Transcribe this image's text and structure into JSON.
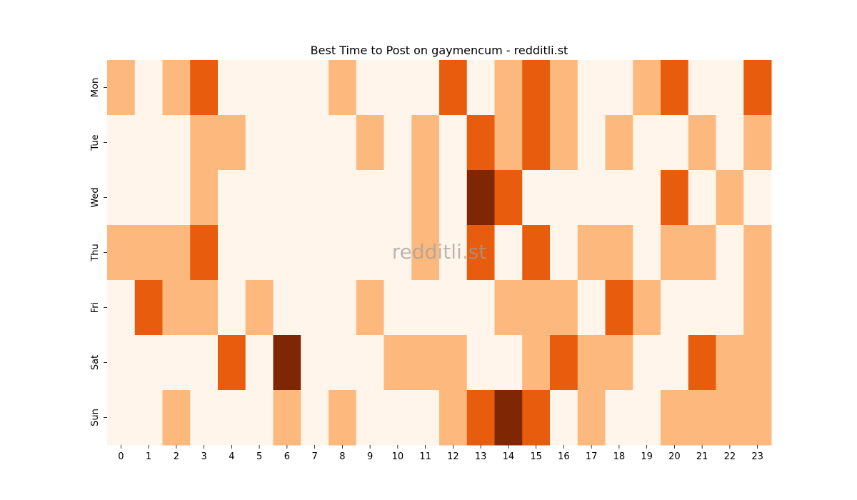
{
  "chart_data": {
    "type": "heatmap",
    "title": "Best Time to Post on gaymencum - redditli.st",
    "watermark": "redditli.st",
    "x_labels": [
      "0",
      "1",
      "2",
      "3",
      "4",
      "5",
      "6",
      "7",
      "8",
      "9",
      "10",
      "11",
      "12",
      "13",
      "14",
      "15",
      "16",
      "17",
      "18",
      "19",
      "20",
      "21",
      "22",
      "23"
    ],
    "y_labels": [
      "Mon",
      "Tue",
      "Wed",
      "Thu",
      "Fri",
      "Sat",
      "Sun"
    ],
    "values": [
      [
        1,
        0,
        1,
        2,
        0,
        0,
        0,
        0,
        1,
        0,
        0,
        0,
        2,
        0,
        1,
        2,
        1,
        0,
        0,
        1,
        2,
        0,
        0,
        2
      ],
      [
        0,
        0,
        0,
        1,
        1,
        0,
        0,
        0,
        0,
        1,
        0,
        1,
        0,
        2,
        1,
        2,
        1,
        0,
        1,
        0,
        0,
        1,
        0,
        1
      ],
      [
        0,
        0,
        0,
        1,
        0,
        0,
        0,
        0,
        0,
        0,
        0,
        1,
        0,
        3,
        2,
        0,
        0,
        0,
        0,
        0,
        2,
        0,
        1,
        0
      ],
      [
        1,
        1,
        1,
        2,
        0,
        0,
        0,
        0,
        0,
        0,
        0,
        1,
        0,
        2,
        0,
        2,
        0,
        1,
        1,
        0,
        1,
        1,
        0,
        1
      ],
      [
        0,
        2,
        1,
        1,
        0,
        1,
        0,
        0,
        0,
        1,
        0,
        0,
        0,
        0,
        1,
        1,
        1,
        0,
        2,
        1,
        0,
        0,
        0,
        1
      ],
      [
        0,
        0,
        0,
        0,
        2,
        0,
        3,
        0,
        0,
        0,
        1,
        1,
        1,
        0,
        0,
        1,
        2,
        1,
        1,
        0,
        0,
        2,
        1,
        1
      ],
      [
        0,
        0,
        1,
        0,
        0,
        0,
        1,
        0,
        1,
        0,
        0,
        0,
        1,
        2,
        3,
        2,
        0,
        1,
        0,
        0,
        1,
        1,
        1,
        1
      ]
    ],
    "colormap": [
      "#fff5eb",
      "#fdb97d",
      "#e85d0d",
      "#7f2704"
    ],
    "grid": false
  }
}
